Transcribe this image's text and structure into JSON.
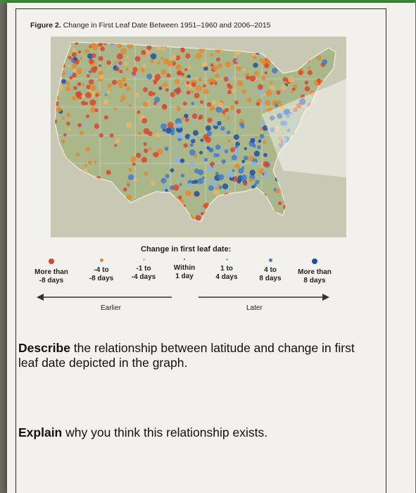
{
  "figure": {
    "label": "Figure 2.",
    "title": "Change in First Leaf Date Between 1951–1960 and 2006–2015"
  },
  "legend": {
    "title": "Change in first leaf date:",
    "items": [
      {
        "text": "More than\n-8 days",
        "color": "#d9472e",
        "size": 8
      },
      {
        "text": "-4 to\n-8 days",
        "color": "#e38b2f",
        "size": 5
      },
      {
        "text": "-1 to\n-4 days",
        "color": "#eab66a",
        "size": 3
      },
      {
        "text": "Within\n1 day",
        "color": "#555555",
        "size": 2
      },
      {
        "text": "1 to\n4 days",
        "color": "#8fb4dc",
        "size": 3
      },
      {
        "text": "4 to\n8 days",
        "color": "#3f7cc9",
        "size": 5
      },
      {
        "text": "More than\n8 days",
        "color": "#1f4fa3",
        "size": 8
      }
    ],
    "earlier_label": "Earlier",
    "later_label": "Later"
  },
  "questions": {
    "q1_bold": "Describe",
    "q1_rest": " the relationship between latitude and change in first leaf date depicted in the graph.",
    "q2_bold": "Explain",
    "q2_rest": " why you think this relationship exists."
  }
}
